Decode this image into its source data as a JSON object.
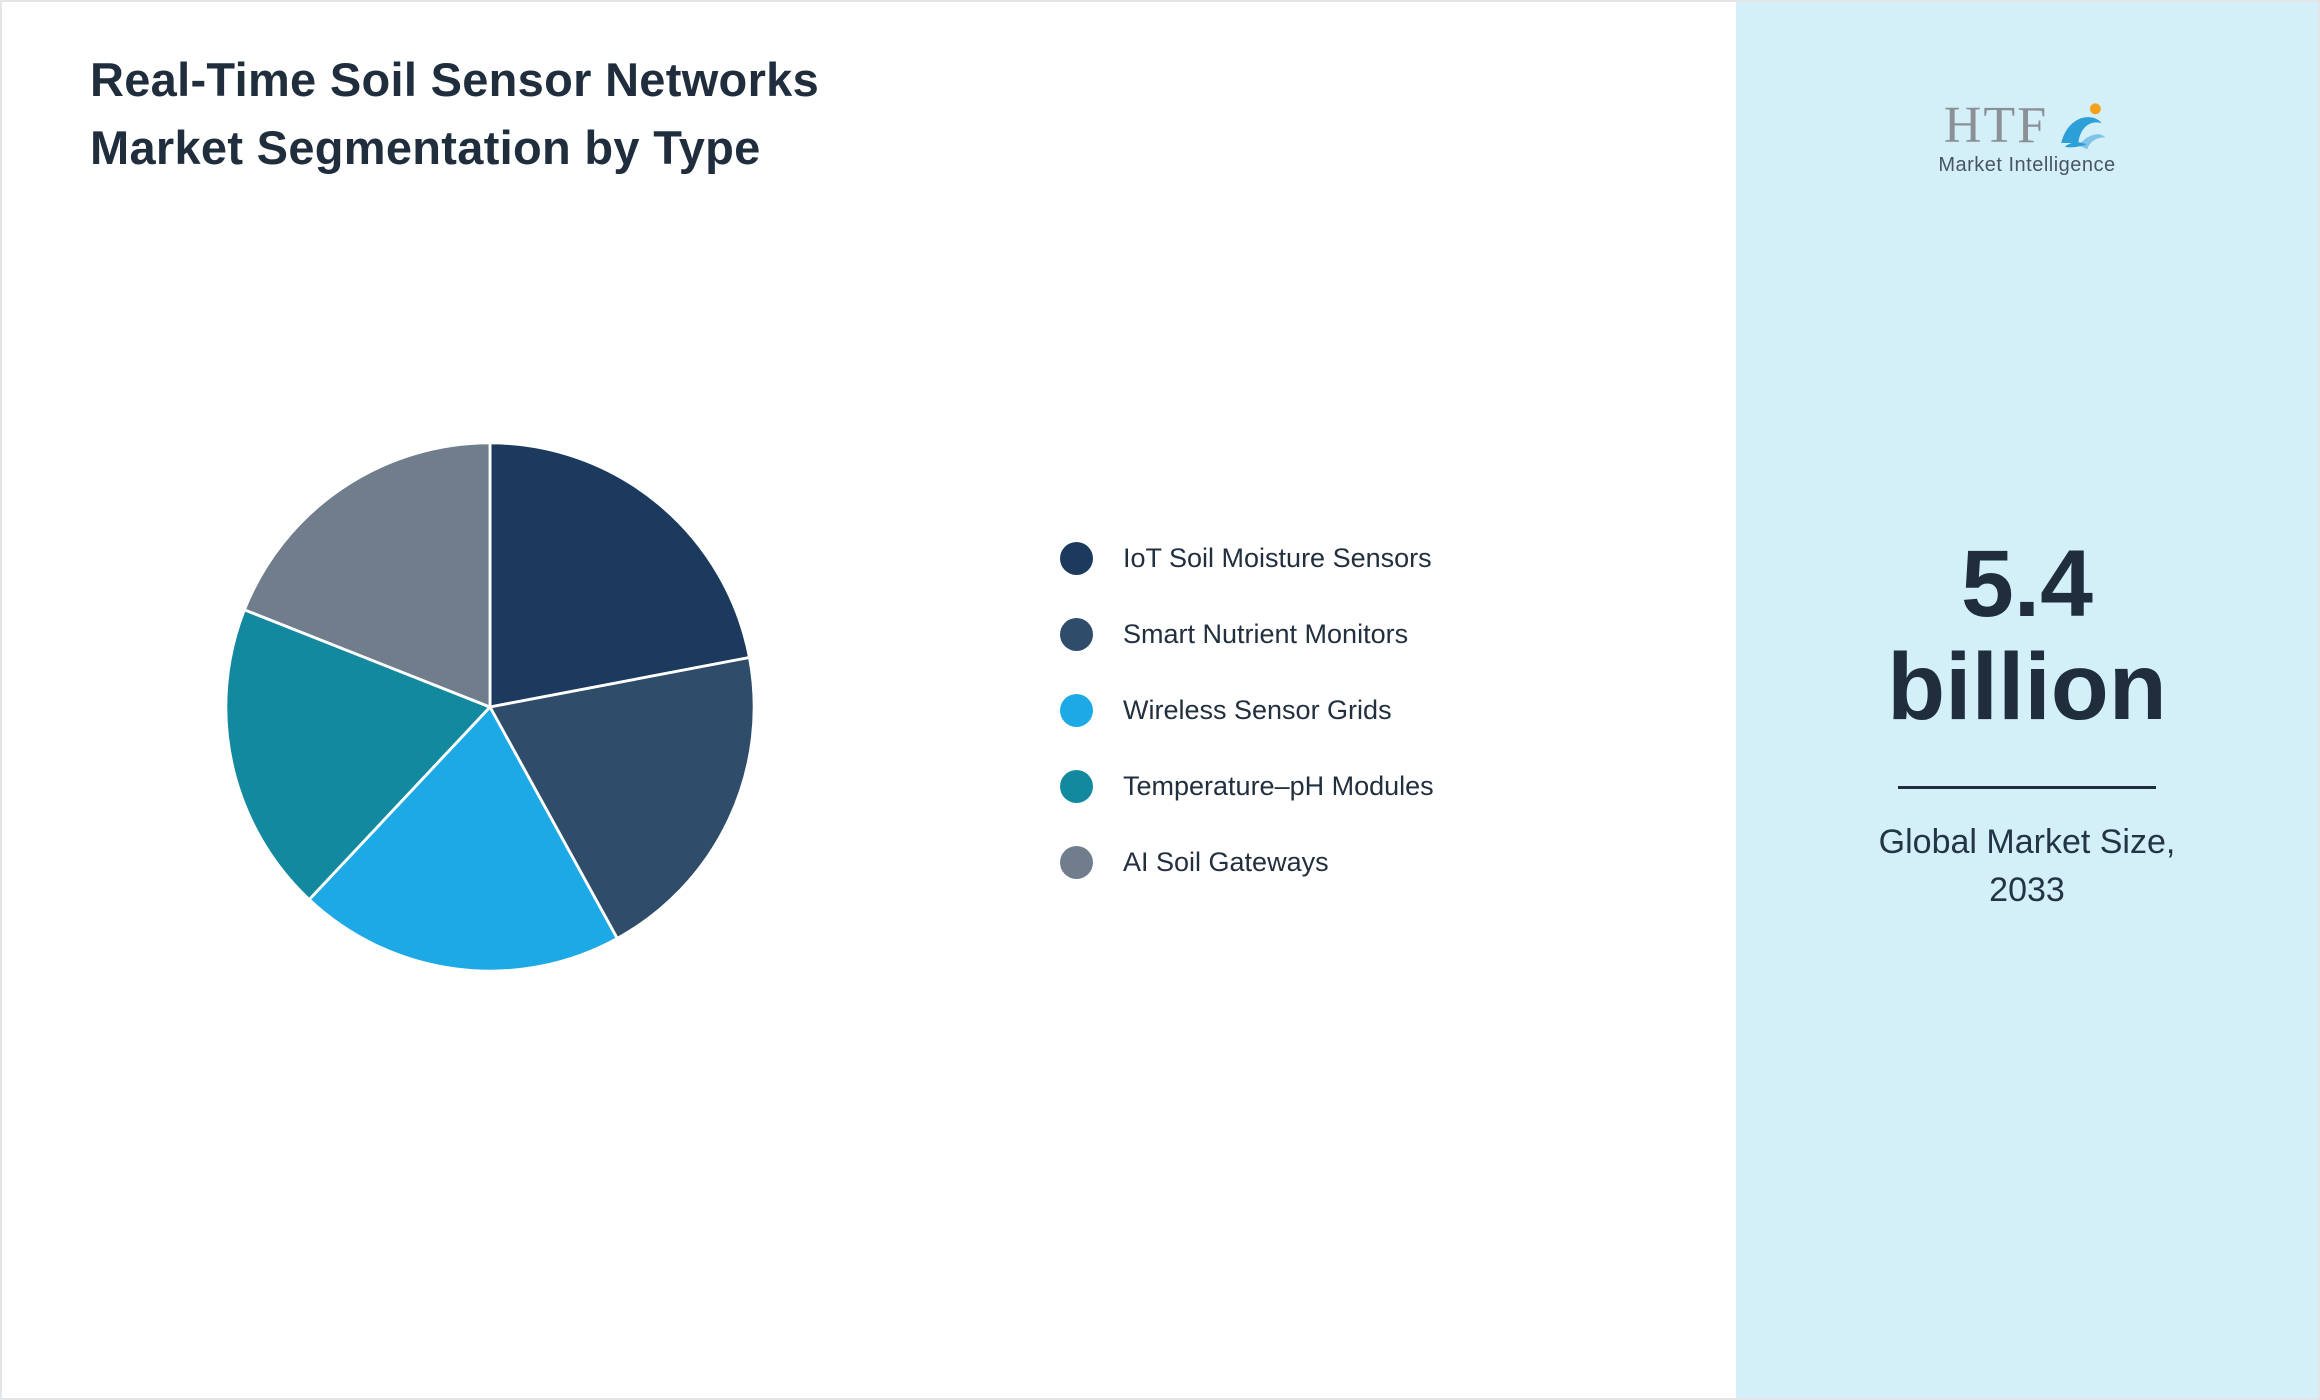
{
  "title": {
    "line1": "Real-Time Soil Sensor Networks",
    "line2": "Market Segmentation by Type"
  },
  "logo": {
    "name": "HTF",
    "subtitle": "Market Intelligence"
  },
  "sidebar": {
    "background_color": "#d3f0f9",
    "market_size_value": "5.4",
    "market_size_unit": "billion",
    "caption_line1": "Global Market Size,",
    "caption_line2": "2033"
  },
  "chart_data": {
    "type": "pie",
    "title": "Real-Time Soil Sensor Networks Market Segmentation by Type",
    "categories": [
      "IoT Soil Moisture Sensors",
      "Smart Nutrient Monitors",
      "Wireless Sensor Grids",
      "Temperature–pH Modules",
      "AI Soil Gateways"
    ],
    "values": [
      22,
      20,
      20,
      19,
      19
    ],
    "colors": [
      "#1b3a5e",
      "#2f4d6b",
      "#1ca9e6",
      "#12899e",
      "#6f7d8c"
    ],
    "start_angle_deg": 0,
    "direction": "clockwise",
    "slice_border_color": "#ffffff",
    "legend_position": "right",
    "legend_marker": "circle"
  }
}
